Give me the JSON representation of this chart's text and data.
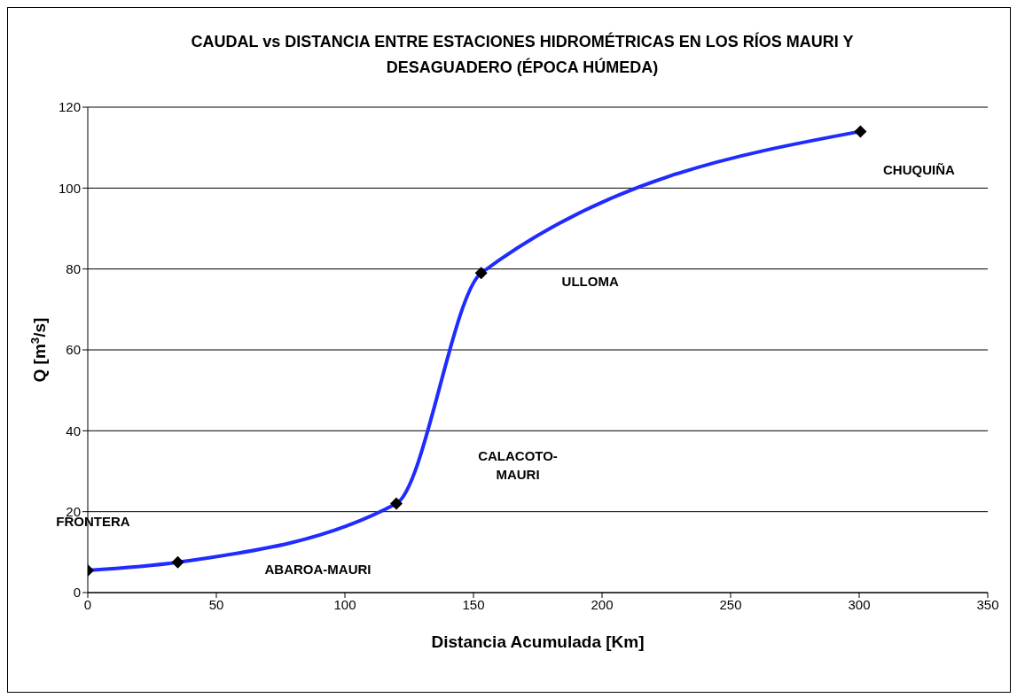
{
  "chart_data": {
    "type": "line",
    "title": "CAUDAL vs DISTANCIA ENTRE ESTACIONES HIDROMÉTRICAS EN LOS RÍOS MAURI Y DESAGUADERO (ÉPOCA HÚMEDA)",
    "xlabel": "Distancia Acumulada [Km]",
    "ylabel": "Q [m$^{3}$/s]",
    "x": [
      0,
      35,
      120,
      153,
      300.5
    ],
    "series": [
      {
        "color": "#1f2bff",
        "values": [
          5.5,
          7.5,
          22,
          79,
          114
        ]
      }
    ],
    "xlim": [
      0,
      350
    ],
    "xticks": [
      0,
      50,
      100,
      150,
      200,
      250,
      300,
      350
    ],
    "ylim": [
      0,
      120
    ],
    "yticks": [
      0,
      20,
      40,
      60,
      80,
      100,
      120
    ],
    "grid": "y",
    "marker": "diamond",
    "line_style": "solid",
    "annotations": [
      "FRONTERA",
      "ABAROA-MAURI",
      "CALACOTO-MAURI",
      "ULLOMA",
      "CHUQUIÑA"
    ]
  }
}
